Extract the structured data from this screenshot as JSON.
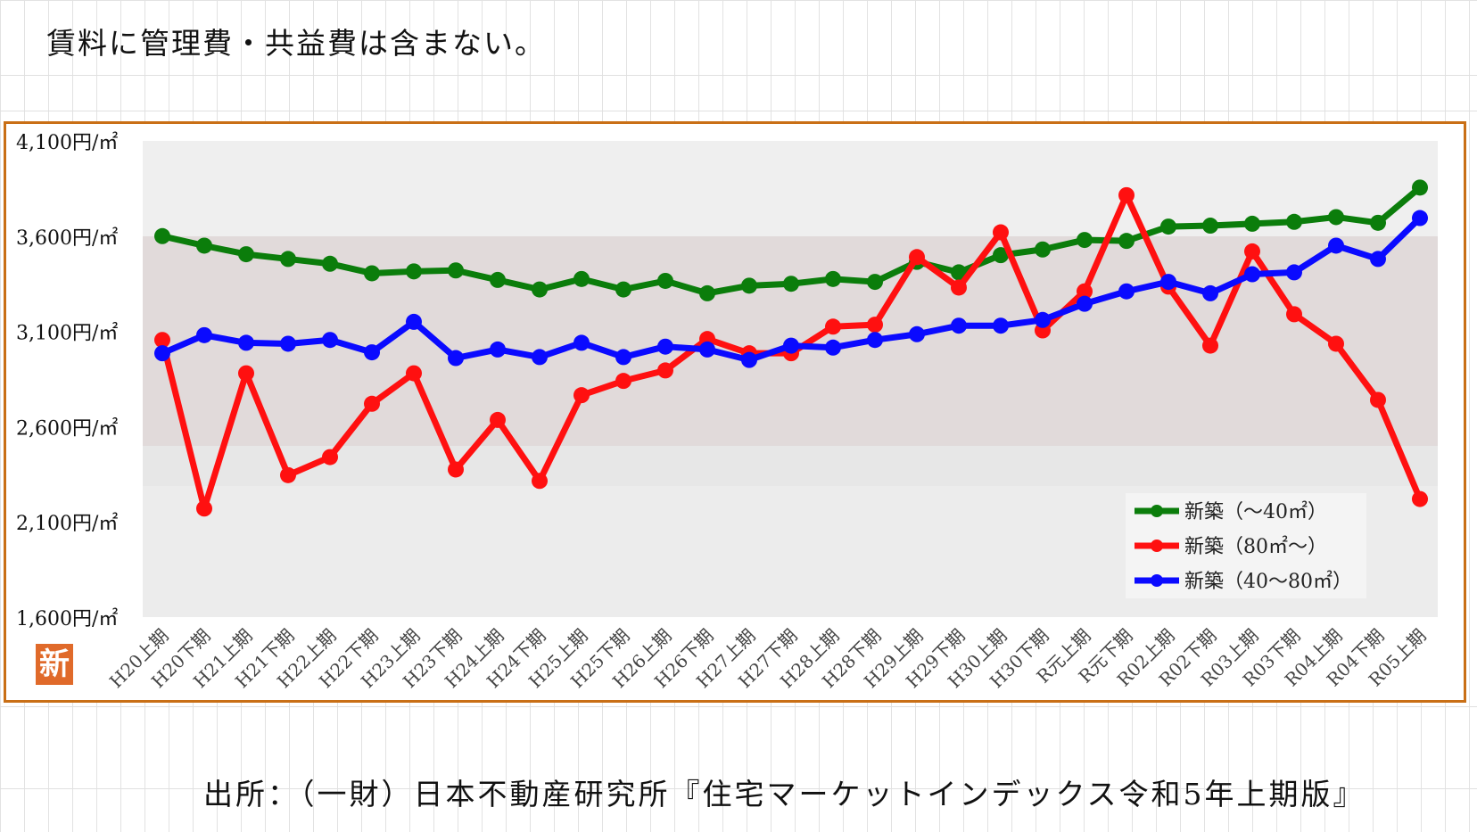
{
  "note": "賃料に管理費・共益費は含まない。",
  "source": "出所：（一財）日本不動産研究所『住宅マーケットインデックス令和5年上期版』",
  "badge": "新",
  "chart_data": {
    "type": "line",
    "title": "",
    "xlabel": "",
    "ylabel": "",
    "ylim": [
      1600,
      4100
    ],
    "yticks": [
      1600,
      2100,
      2600,
      3100,
      3600,
      4100
    ],
    "ytick_labels": [
      "1,600円/㎡",
      "2,100円/㎡",
      "2,600円/㎡",
      "3,100円/㎡",
      "3,600円/㎡",
      "4,100円/㎡"
    ],
    "grid": false,
    "legend_position": "bottom-right",
    "categories": [
      "H20上期",
      "H20下期",
      "H21上期",
      "H21下期",
      "H22上期",
      "H22下期",
      "H23上期",
      "H23下期",
      "H24上期",
      "H24下期",
      "H25上期",
      "H25下期",
      "H26上期",
      "H26下期",
      "H27上期",
      "H27下期",
      "H28上期",
      "H28下期",
      "H29上期",
      "H29下期",
      "H30上期",
      "H30下期",
      "R元上期",
      "R元下期",
      "R02上期",
      "R02下期",
      "R03上期",
      "R03下期",
      "R04上期",
      "R04下期",
      "R05上期"
    ],
    "series": [
      {
        "name": "新築（～40㎡）",
        "color": "#0b7d0b",
        "values": [
          3600,
          3550,
          3505,
          3480,
          3455,
          3405,
          3415,
          3420,
          3370,
          3320,
          3375,
          3320,
          3365,
          3300,
          3340,
          3350,
          3375,
          3360,
          3465,
          3410,
          3500,
          3530,
          3580,
          3575,
          3650,
          3655,
          3665,
          3675,
          3700,
          3670,
          3855
        ]
      },
      {
        "name": "新築（80㎡～）",
        "color": "#ff1010",
        "values": [
          3055,
          2170,
          2880,
          2345,
          2440,
          2720,
          2880,
          2375,
          2635,
          2315,
          2765,
          2840,
          2895,
          3060,
          2985,
          2985,
          3125,
          3135,
          3490,
          3330,
          3620,
          3105,
          3310,
          3815,
          3335,
          3025,
          3520,
          3190,
          3035,
          2740,
          2220
        ]
      },
      {
        "name": "新築（40～80㎡）",
        "color": "#0a0aff",
        "values": [
          2985,
          3080,
          3040,
          3035,
          3055,
          2990,
          3150,
          2960,
          3005,
          2965,
          3040,
          2965,
          3020,
          3005,
          2950,
          3025,
          3015,
          3055,
          3085,
          3130,
          3130,
          3160,
          3245,
          3310,
          3360,
          3300,
          3400,
          3410,
          3550,
          3480,
          3695
        ]
      }
    ]
  }
}
